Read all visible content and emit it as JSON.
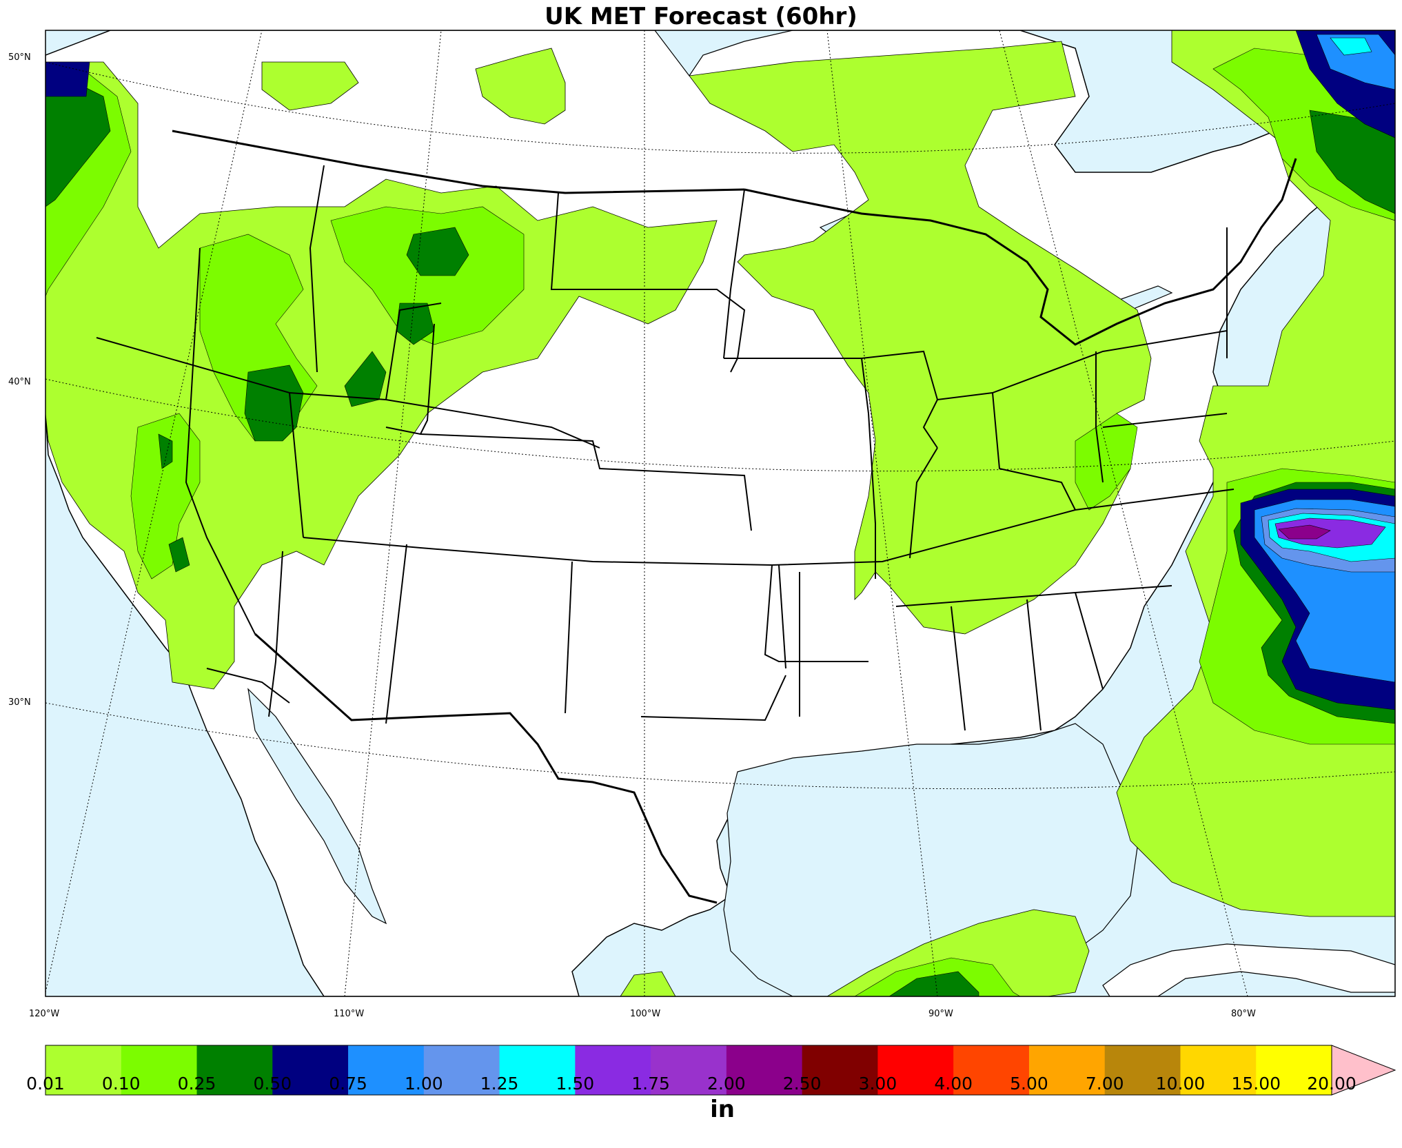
{
  "title": "UK MET Forecast (60hr)",
  "lat_labels": [
    "50°N",
    "40°N",
    "30°N"
  ],
  "lon_labels": [
    "120°W",
    "110°W",
    "100°W",
    "90°W",
    "80°W"
  ],
  "colorbar": {
    "unit": "in",
    "ticks": [
      "0.01",
      "0.10",
      "0.25",
      "0.50",
      "0.75",
      "1.00",
      "1.25",
      "1.50",
      "1.75",
      "2.00",
      "2.50",
      "3.00",
      "4.00",
      "5.00",
      "7.00",
      "10.00",
      "15.00",
      "20.00"
    ],
    "colors": [
      "#adff2f",
      "#7cfc00",
      "#008000",
      "#000080",
      "#1e90ff",
      "#6495ed",
      "#00ffff",
      "#8a2be2",
      "#9932cc",
      "#8b008b",
      "#800000",
      "#ff0000",
      "#ff4500",
      "#ffa500",
      "#b8860b",
      "#ffd700",
      "#ffff00"
    ],
    "extend_color": "#ffc0cb"
  },
  "colors": {
    "ocean": "#ddf4fd",
    "land": "#ffffff"
  }
}
